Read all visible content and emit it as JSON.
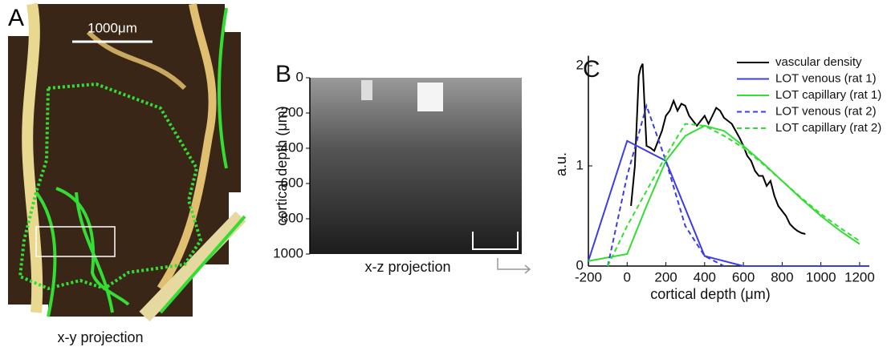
{
  "panel_a": {
    "label": "A",
    "scale_bar": "1000μm",
    "caption": "x-y projection"
  },
  "chart_data": [
    {
      "type": "image",
      "label": "B",
      "ylabel": "cortical depth (μm)",
      "xlabel": "x-z projection",
      "ylim": [
        0,
        1000
      ],
      "y_inverted": true,
      "yticks": [
        0,
        200,
        400,
        600,
        800,
        1000
      ]
    },
    {
      "type": "line",
      "label": "C",
      "xlabel": "cortical depth (μm)",
      "ylabel": "a.u.",
      "xlim": [
        -200,
        1250
      ],
      "ylim": [
        0,
        2.1
      ],
      "xticks": [
        -200,
        0,
        200,
        400,
        600,
        800,
        1000,
        1200
      ],
      "yticks": [
        0,
        1,
        2
      ],
      "legend": "upper right",
      "series": [
        {
          "name": "vascular density",
          "color": "#000000",
          "dash": false,
          "x": [
            20,
            40,
            60,
            70,
            80,
            90,
            100,
            120,
            140,
            160,
            180,
            200,
            220,
            240,
            260,
            280,
            300,
            320,
            340,
            360,
            380,
            400,
            420,
            440,
            460,
            480,
            500,
            520,
            540,
            560,
            580,
            600,
            620,
            640,
            660,
            680,
            700,
            720,
            740,
            760,
            780,
            800,
            820,
            840,
            860,
            880,
            900,
            920
          ],
          "values": [
            0.6,
            1.0,
            1.9,
            1.98,
            2.02,
            1.6,
            1.2,
            1.18,
            1.15,
            1.25,
            1.35,
            1.5,
            1.55,
            1.65,
            1.55,
            1.62,
            1.6,
            1.5,
            1.45,
            1.4,
            1.45,
            1.5,
            1.42,
            1.5,
            1.58,
            1.55,
            1.48,
            1.45,
            1.42,
            1.35,
            1.28,
            1.2,
            1.1,
            1.05,
            0.95,
            0.9,
            0.9,
            0.8,
            0.85,
            0.7,
            0.6,
            0.55,
            0.5,
            0.42,
            0.38,
            0.35,
            0.33,
            0.32
          ]
        },
        {
          "name": "LOT venous (rat 1)",
          "color": "#3c3ce6",
          "dash": false,
          "x": [
            -200,
            0,
            200,
            400,
            600,
            1250
          ],
          "values": [
            0.05,
            1.25,
            1.05,
            0.1,
            0,
            0
          ]
        },
        {
          "name": "LOT capillary (rat 1)",
          "color": "#33dd33",
          "dash": false,
          "x": [
            -200,
            0,
            100,
            200,
            300,
            400,
            500,
            600,
            700,
            800,
            900,
            1000,
            1100,
            1200
          ],
          "values": [
            0.05,
            0.12,
            0.6,
            1.05,
            1.3,
            1.4,
            1.35,
            1.2,
            1.03,
            0.85,
            0.67,
            0.5,
            0.35,
            0.22
          ]
        },
        {
          "name": "LOT venous (rat 2)",
          "color": "#3c3ce6",
          "dash": true,
          "x": [
            -100,
            0,
            100,
            200,
            300,
            400,
            500
          ],
          "values": [
            0,
            0.9,
            1.6,
            1.05,
            0.4,
            0.1,
            0
          ]
        },
        {
          "name": "LOT capillary (rat 2)",
          "color": "#33dd33",
          "dash": true,
          "x": [
            -100,
            0,
            100,
            200,
            300,
            400,
            500,
            600,
            700,
            800,
            900,
            1000,
            1100,
            1200
          ],
          "values": [
            0,
            0.4,
            0.75,
            1.1,
            1.42,
            1.4,
            1.3,
            1.18,
            1.02,
            0.85,
            0.68,
            0.52,
            0.38,
            0.25
          ]
        }
      ]
    }
  ]
}
